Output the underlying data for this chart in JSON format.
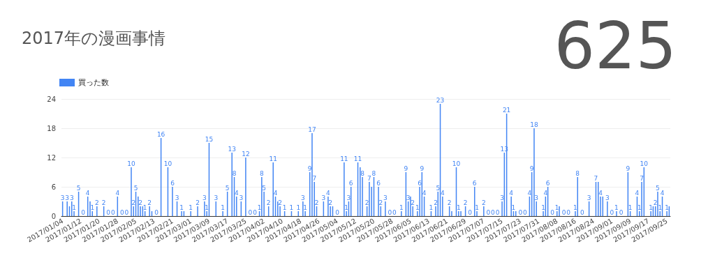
{
  "chart_data": {
    "type": "bar",
    "title": "2017年の漫画事情",
    "annotations": [
      "625"
    ],
    "categories": [
      "2017/01/04",
      null,
      null,
      null,
      null,
      null,
      null,
      null,
      "2017/01/12",
      null,
      null,
      null,
      null,
      null,
      null,
      null,
      "2017/01/20",
      null,
      null,
      null,
      null,
      null,
      null,
      null,
      "2017/01/28",
      null,
      null,
      null,
      null,
      null,
      null,
      null,
      "2017/02/05",
      null,
      null,
      null,
      null,
      null,
      null,
      null,
      "2017/02/13",
      null,
      null,
      null,
      null,
      null,
      null,
      null,
      "2017/02/21",
      null,
      null,
      null,
      null,
      null,
      null,
      null,
      "2017/03/01",
      null,
      null,
      null,
      null,
      null,
      null,
      null,
      "2017/03/09",
      null,
      null,
      null,
      null,
      null,
      null,
      null,
      "2017/03/17",
      null,
      null,
      null,
      null,
      null,
      null,
      null,
      "2017/03/25",
      null,
      null,
      null,
      null,
      null,
      null,
      null,
      "2017/04/02",
      null,
      null,
      null,
      null,
      null,
      null,
      null,
      "2017/04/10",
      null,
      null,
      null,
      null,
      null,
      null,
      null,
      "2017/04/18",
      null,
      null,
      null,
      null,
      null,
      null,
      null,
      "2017/04/26",
      null,
      null,
      null,
      null,
      null,
      null,
      null,
      "2017/05/04",
      null,
      null,
      null,
      null,
      null,
      null,
      null,
      "2017/05/12",
      null,
      null,
      null,
      null,
      null,
      null,
      null,
      "2017/05/20",
      null,
      null,
      null,
      null,
      null,
      null,
      null,
      "2017/05/28",
      null,
      null,
      null,
      null,
      null,
      null,
      null,
      "2017/06/05",
      null,
      null,
      null,
      null,
      null,
      null,
      null,
      "2017/06/13",
      null,
      null,
      null,
      null,
      null,
      null,
      null,
      "2017/06/21",
      null,
      null,
      null,
      null,
      null,
      null,
      null,
      "2017/06/29",
      null,
      null,
      null,
      null,
      null,
      null,
      null,
      "2017/07/07",
      null,
      null,
      null,
      null,
      null,
      null,
      null,
      "2017/07/15",
      null,
      null,
      null,
      null,
      null,
      null,
      null,
      "2017/07/23",
      null,
      null,
      null,
      null,
      null,
      null,
      null,
      "2017/07/31",
      null,
      null,
      null,
      null,
      null,
      null,
      null,
      "2017/08/08",
      null,
      null,
      null,
      null,
      null,
      null,
      null,
      "2017/08/16",
      null,
      null,
      null,
      null,
      null,
      null,
      null,
      "2017/08/24",
      null,
      null,
      null,
      null,
      null,
      null,
      null,
      "2017/09/01",
      null,
      null,
      null,
      null,
      null,
      null,
      null,
      "2017/09/09",
      null,
      null,
      null,
      null,
      null,
      null,
      null,
      "2017/09/17",
      null,
      null,
      null,
      null,
      null,
      null,
      null,
      "2017/09/25",
      null
    ],
    "series": [
      {
        "name": "買った数",
        "color": "#4285f4",
        "values": [
          3,
          0,
          3,
          2,
          3,
          1,
          0,
          5,
          0,
          0,
          0,
          4,
          3,
          1,
          0,
          2,
          0,
          0,
          2,
          0,
          0,
          0,
          0,
          0,
          4,
          0,
          0,
          0,
          0,
          0,
          10,
          2,
          5,
          4,
          2,
          2,
          1,
          0,
          2,
          1,
          0,
          0,
          0,
          16,
          0,
          0,
          10,
          0,
          6,
          0,
          3,
          0,
          1,
          1,
          0,
          0,
          1,
          0,
          0,
          2,
          0,
          0,
          3,
          1,
          15,
          0,
          0,
          3,
          0,
          0,
          1,
          0,
          5,
          0,
          13,
          8,
          4,
          0,
          3,
          0,
          12,
          0,
          0,
          0,
          0,
          0,
          1,
          8,
          5,
          0,
          2,
          0,
          11,
          4,
          3,
          2,
          0,
          1,
          0,
          0,
          1,
          0,
          0,
          1,
          0,
          3,
          1,
          0,
          9,
          17,
          7,
          2,
          0,
          0,
          3,
          0,
          4,
          2,
          2,
          0,
          0,
          0,
          0,
          11,
          1,
          3,
          6,
          0,
          0,
          11,
          10,
          8,
          0,
          2,
          7,
          6,
          8,
          0,
          6,
          2,
          0,
          3,
          0,
          0,
          0,
          0,
          0,
          0,
          1,
          0,
          9,
          3,
          4,
          2,
          0,
          1,
          6,
          9,
          4,
          0,
          0,
          1,
          0,
          2,
          5,
          23,
          4,
          0,
          0,
          2,
          1,
          0,
          10,
          1,
          1,
          0,
          2,
          0,
          0,
          0,
          6,
          1,
          0,
          0,
          2,
          0,
          0,
          0,
          0,
          0,
          0,
          0,
          3,
          13,
          21,
          0,
          4,
          1,
          1,
          0,
          0,
          0,
          0,
          0,
          4,
          9,
          18,
          3,
          0,
          0,
          1,
          4,
          6,
          0,
          0,
          0,
          1,
          2,
          0,
          0,
          0,
          0,
          0,
          0,
          1,
          8,
          0,
          0,
          0,
          0,
          3,
          0,
          0,
          7,
          7,
          4,
          4,
          0,
          3,
          0,
          0,
          0,
          1,
          0,
          0,
          0,
          0,
          9,
          1,
          0,
          0,
          4,
          1,
          7,
          10,
          0,
          0,
          1,
          2,
          2,
          5,
          1,
          4,
          0,
          1,
          2
        ]
      }
    ],
    "value_labels": [
      "3",
      null,
      "3",
      null,
      "3",
      "1",
      null,
      "5",
      null,
      "0",
      null,
      "4",
      null,
      "1",
      null,
      "2",
      null,
      null,
      "2",
      null,
      "0",
      null,
      "0",
      null,
      "4",
      null,
      "0",
      null,
      "0",
      null,
      "10",
      "2",
      "5",
      null,
      "2",
      null,
      "1",
      null,
      "2",
      null,
      null,
      "0",
      null,
      "16",
      null,
      null,
      "10",
      null,
      "6",
      null,
      "3",
      null,
      "1",
      null,
      null,
      null,
      "1",
      null,
      null,
      "2",
      null,
      null,
      "3",
      "1",
      "15",
      null,
      null,
      "3",
      null,
      null,
      "1",
      null,
      "5",
      null,
      "13",
      "8",
      "4",
      null,
      "3",
      null,
      "12",
      null,
      "0",
      null,
      "0",
      null,
      "1",
      "8",
      "5",
      null,
      "2",
      null,
      "11",
      "4",
      null,
      "2",
      null,
      "1",
      null,
      null,
      "1",
      null,
      null,
      "1",
      null,
      "3",
      "1",
      null,
      "9",
      "17",
      "7",
      "2",
      null,
      null,
      "3",
      null,
      "4",
      "2",
      null,
      null,
      "0",
      null,
      null,
      "11",
      "1",
      "3",
      "6",
      null,
      null,
      "11",
      null,
      "8",
      null,
      "2",
      "7",
      null,
      "8",
      null,
      "6",
      "2",
      null,
      "3",
      null,
      "0",
      null,
      "0",
      null,
      null,
      "1",
      null,
      "9",
      "3",
      null,
      "2",
      null,
      "1",
      "6",
      "9",
      "4",
      null,
      null,
      "1",
      null,
      "2",
      "5",
      "23",
      "4",
      null,
      null,
      "2",
      null,
      null,
      "10",
      "1",
      null,
      null,
      "2",
      null,
      "0",
      null,
      "6",
      "1",
      null,
      null,
      "2",
      null,
      "0",
      null,
      "0",
      null,
      "0",
      null,
      "3",
      "13",
      "21",
      null,
      "4",
      "1",
      null,
      null,
      "0",
      null,
      "0",
      null,
      "4",
      "9",
      "18",
      "3",
      null,
      null,
      "1",
      "4",
      "6",
      null,
      "0",
      null,
      "1",
      null,
      null,
      "0",
      null,
      "0",
      null,
      null,
      "1",
      "8",
      null,
      "0",
      null,
      null,
      "3",
      null,
      null,
      "7",
      null,
      "4",
      null,
      null,
      "3",
      null,
      "0",
      null,
      "1",
      null,
      "0",
      null,
      null,
      "9",
      "1",
      null,
      null,
      "4",
      "1",
      "7",
      "10",
      null,
      null,
      "1",
      null,
      "2",
      "5",
      "1",
      "4",
      null,
      "1",
      null
    ],
    "ylim": [
      0,
      24
    ],
    "yticks": [
      0,
      6,
      12,
      18,
      24
    ],
    "grid": "y",
    "legend": "top left"
  }
}
